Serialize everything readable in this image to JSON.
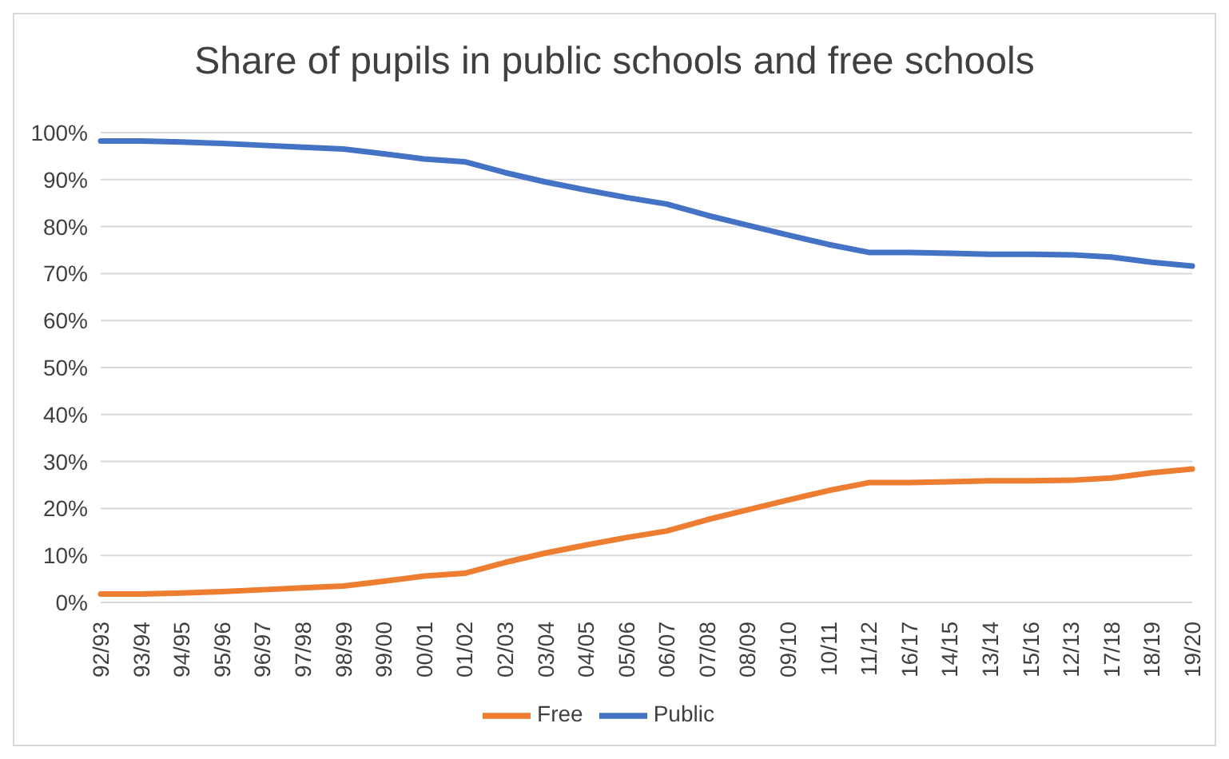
{
  "chart_data": {
    "type": "line",
    "title": "Share of pupils in public schools and free schools",
    "categories": [
      "92/93",
      "93/94",
      "94/95",
      "95/96",
      "96/97",
      "97/98",
      "98/99",
      "99/00",
      "00/01",
      "01/02",
      "02/03",
      "03/04",
      "04/05",
      "05/06",
      "06/07",
      "07/08",
      "08/09",
      "09/10",
      "10/11",
      "11/12",
      "16/17",
      "14/15",
      "13/14",
      "15/16",
      "12/13",
      "17/18",
      "18/19",
      "19/20"
    ],
    "series": [
      {
        "name": "Public",
        "color": "#4472c4",
        "values": [
          98.2,
          98.2,
          98.0,
          97.7,
          97.3,
          96.9,
          96.5,
          95.5,
          94.4,
          93.8,
          91.5,
          89.5,
          87.8,
          86.2,
          84.8,
          82.4,
          80.3,
          78.2,
          76.2,
          74.5,
          74.5,
          74.3,
          74.1,
          74.1,
          74.0,
          73.5,
          72.4,
          71.6
        ]
      },
      {
        "name": "Free",
        "color": "#ed7d31",
        "values": [
          1.8,
          1.8,
          2.0,
          2.3,
          2.7,
          3.1,
          3.5,
          4.5,
          5.6,
          6.2,
          8.5,
          10.5,
          12.2,
          13.8,
          15.2,
          17.6,
          19.7,
          21.8,
          23.8,
          25.5,
          25.5,
          25.7,
          25.9,
          25.9,
          26.0,
          26.5,
          27.6,
          28.4
        ]
      }
    ],
    "ylim": [
      0,
      100
    ],
    "yticks": [
      {
        "value": 0,
        "label": "0%"
      },
      {
        "value": 10,
        "label": "10%"
      },
      {
        "value": 20,
        "label": "20%"
      },
      {
        "value": 30,
        "label": "30%"
      },
      {
        "value": 40,
        "label": "40%"
      },
      {
        "value": 50,
        "label": "50%"
      },
      {
        "value": 60,
        "label": "60%"
      },
      {
        "value": 70,
        "label": "70%"
      },
      {
        "value": 80,
        "label": "80%"
      },
      {
        "value": 90,
        "label": "90%"
      },
      {
        "value": 100,
        "label": "100%"
      }
    ],
    "grid": "y",
    "legend": "bottom",
    "marker": "none",
    "line_style": "solid"
  }
}
